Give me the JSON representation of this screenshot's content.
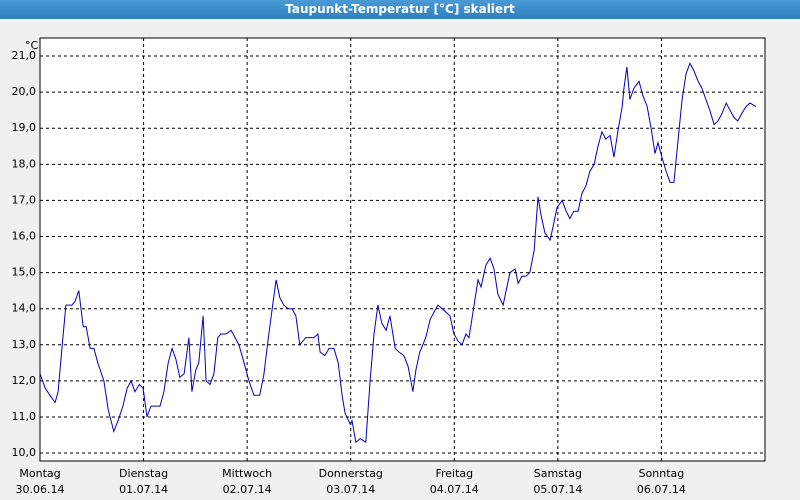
{
  "chart_data": {
    "type": "line",
    "title": "Taupunkt-Temperatur [°C] skaliert",
    "y_unit": "°C",
    "color": "#0000c0",
    "grid": true,
    "xlim": [
      0,
      168
    ],
    "xticks": [
      {
        "value": 0,
        "label": "Montag"
      },
      {
        "value": 24,
        "label": "Dienstag"
      },
      {
        "value": 48,
        "label": "Mittwoch"
      },
      {
        "value": 72,
        "label": "Donnerstag"
      },
      {
        "value": 96,
        "label": "Freitag"
      },
      {
        "value": 120,
        "label": "Samstag"
      },
      {
        "value": 144,
        "label": "Sonntag"
      }
    ],
    "xtick_dates": [
      "30.06.14",
      "01.07.14",
      "02.07.14",
      "03.07.14",
      "04.07.14",
      "05.07.14",
      "06.07.14"
    ],
    "ylim": [
      9.78,
      21.5
    ],
    "yticks": [
      {
        "value": 10,
        "label": "10,0"
      },
      {
        "value": 11,
        "label": "11,0"
      },
      {
        "value": 12,
        "label": "12,0"
      },
      {
        "value": 13,
        "label": "13,0"
      },
      {
        "value": 14,
        "label": "14,0"
      },
      {
        "value": 15,
        "label": "15,0"
      },
      {
        "value": 16,
        "label": "16,0"
      },
      {
        "value": 17,
        "label": "17,0"
      },
      {
        "value": 18,
        "label": "18,0"
      },
      {
        "value": 19,
        "label": "19,0"
      },
      {
        "value": 20,
        "label": "20,0"
      },
      {
        "value": 21,
        "label": "21,0"
      }
    ],
    "x": [
      0,
      1.2,
      2.3,
      3.5,
      4.2,
      5.3,
      6.0,
      7.4,
      8.1,
      9.0,
      10.0,
      10.7,
      11.6,
      12.5,
      13.4,
      14.8,
      15.8,
      17.1,
      18.1,
      19.2,
      20.2,
      21.1,
      22.0,
      23.0,
      23.9,
      24.8,
      25.7,
      26.6,
      27.8,
      28.7,
      29.7,
      30.6,
      31.5,
      32.4,
      33.4,
      34.5,
      35.2,
      36.1,
      36.8,
      37.8,
      38.5,
      39.4,
      40.3,
      41.2,
      41.9,
      43.1,
      44.3,
      45.2,
      46.1,
      47.3,
      48.4,
      49.6,
      50.9,
      51.9,
      52.8,
      53.8,
      54.7,
      55.6,
      56.5,
      57.5,
      58.4,
      59.3,
      60.2,
      61.6,
      63.5,
      64.4,
      64.9,
      66.0,
      67.0,
      68.1,
      69.1,
      70.0,
      70.7,
      71.9,
      72.3,
      73.2,
      74.2,
      75.5,
      76.5,
      77.4,
      78.3,
      79.2,
      80.2,
      81.1,
      82.3,
      83.2,
      84.3,
      85.3,
      86.4,
      87.1,
      88.0,
      89.4,
      90.4,
      91.3,
      92.2,
      93.2,
      94.1,
      95.0,
      95.9,
      96.9,
      97.8,
      98.7,
      99.4,
      100.6,
      101.5,
      102.2,
      103.3,
      104.3,
      105.2,
      106.1,
      107.3,
      108.2,
      108.9,
      110.1,
      110.8,
      111.7,
      112.6,
      113.5,
      114.5,
      115.4,
      116.1,
      117.0,
      118.2,
      119.1,
      119.8,
      121.0,
      121.9,
      122.8,
      123.7,
      124.7,
      125.6,
      126.5,
      127.4,
      128.4,
      129.3,
      130.2,
      131.1,
      132.1,
      133.0,
      133.9,
      134.9,
      135.3,
      136.0,
      136.7,
      137.6,
      138.8,
      139.7,
      140.7,
      141.6,
      142.5,
      143.2,
      144.1,
      145.1,
      146.0,
      146.9,
      147.8,
      148.8,
      149.7,
      150.6,
      151.5,
      152.5,
      153.4,
      154.3,
      155.2,
      156.2,
      157.1,
      158.0,
      159.0,
      159.9,
      160.8,
      161.7,
      162.6,
      163.6,
      164.5,
      165.9
    ],
    "values": [
      12.2,
      11.8,
      11.6,
      11.4,
      11.7,
      13.2,
      14.1,
      14.1,
      14.2,
      14.5,
      13.5,
      13.5,
      12.9,
      12.9,
      12.5,
      12.0,
      11.2,
      10.6,
      10.9,
      11.3,
      11.8,
      12.0,
      11.7,
      11.9,
      11.8,
      11.0,
      11.3,
      11.3,
      11.3,
      11.7,
      12.5,
      12.9,
      12.6,
      12.1,
      12.2,
      13.2,
      11.7,
      12.3,
      12.5,
      13.8,
      12.0,
      11.9,
      12.2,
      13.2,
      13.3,
      13.3,
      13.4,
      13.2,
      13.0,
      12.5,
      12.0,
      11.6,
      11.6,
      12.2,
      13.1,
      14.0,
      14.8,
      14.3,
      14.1,
      14.0,
      14.0,
      13.8,
      13.0,
      13.2,
      13.2,
      13.3,
      12.8,
      12.7,
      12.9,
      12.9,
      12.5,
      11.6,
      11.1,
      10.8,
      10.9,
      10.3,
      10.4,
      10.3,
      12.0,
      13.3,
      14.1,
      13.6,
      13.4,
      13.8,
      12.9,
      12.8,
      12.7,
      12.4,
      11.7,
      12.3,
      12.8,
      13.2,
      13.7,
      13.9,
      14.1,
      14.0,
      13.9,
      13.8,
      13.3,
      13.1,
      13.0,
      13.3,
      13.2,
      14.1,
      14.8,
      14.6,
      15.2,
      15.4,
      15.1,
      14.4,
      14.1,
      14.6,
      15.0,
      15.1,
      14.7,
      14.9,
      14.9,
      15.0,
      15.6,
      17.1,
      16.6,
      16.1,
      15.9,
      16.4,
      16.8,
      17.0,
      16.7,
      16.5,
      16.7,
      16.7,
      17.2,
      17.4,
      17.8,
      18.0,
      18.5,
      18.9,
      18.7,
      18.8,
      18.2,
      18.9,
      19.6,
      20.1,
      20.7,
      19.8,
      20.1,
      20.3,
      19.9,
      19.6,
      19.0,
      18.3,
      18.6,
      18.2,
      17.8,
      17.5,
      17.5,
      18.6,
      19.8,
      20.5,
      20.8,
      20.6,
      20.3,
      20.1,
      19.8,
      19.5,
      19.1,
      19.2,
      19.4,
      19.7,
      19.5,
      19.3,
      19.2,
      19.4,
      19.6,
      19.7,
      19.6
    ]
  }
}
